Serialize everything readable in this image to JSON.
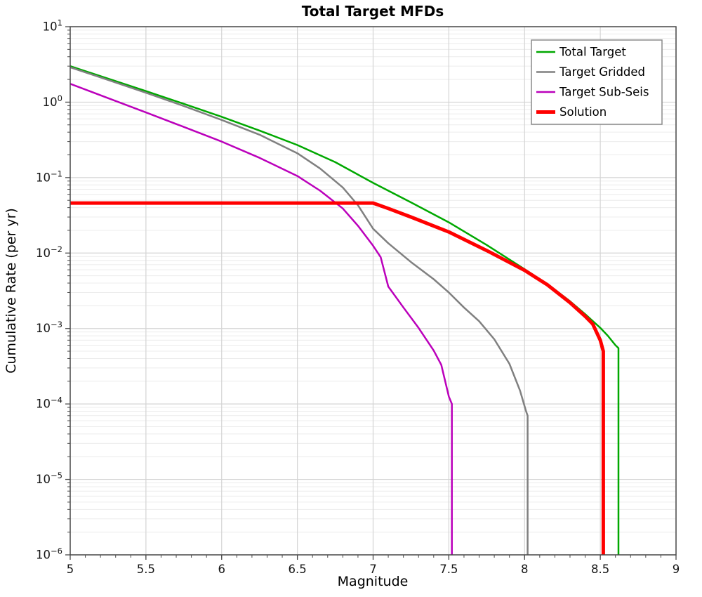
{
  "chart_data": {
    "type": "line",
    "title": "Total Target MFDs",
    "xlabel": "Magnitude",
    "ylabel": "Cumulative Rate (per yr)",
    "xlim": [
      5,
      9
    ],
    "x_minor_step": 0.1,
    "y_scale": "log",
    "ylim": [
      1e-06,
      10
    ],
    "ytick_exponents": [
      1,
      0,
      -1,
      -2,
      -3,
      -4,
      -5,
      -6
    ],
    "xticks": [
      {
        "v": 5,
        "label": "5"
      },
      {
        "v": 5.5,
        "label": "5.5"
      },
      {
        "v": 6,
        "label": "6"
      },
      {
        "v": 6.5,
        "label": "6.5"
      },
      {
        "v": 7,
        "label": "7"
      },
      {
        "v": 7.5,
        "label": "7.5"
      },
      {
        "v": 8,
        "label": "8"
      },
      {
        "v": 8.5,
        "label": "8.5"
      },
      {
        "v": 9,
        "label": "9"
      }
    ],
    "grid": {
      "on": true,
      "major_color": "#d4d4d4",
      "minor_color": "#ececec"
    },
    "axis_color": "#4a4a4a",
    "background": "#ffffff",
    "legend": {
      "position": "top-right",
      "border_color": "#8a8a8a",
      "fill": "#ffffff"
    },
    "series": [
      {
        "name": "Total Target",
        "color": "#00a800",
        "width": 2.5,
        "points": [
          [
            5,
            3.0
          ],
          [
            5.25,
            2.05
          ],
          [
            5.5,
            1.4
          ],
          [
            5.75,
            0.95
          ],
          [
            6,
            0.64
          ],
          [
            6.25,
            0.42
          ],
          [
            6.5,
            0.27
          ],
          [
            6.75,
            0.16
          ],
          [
            7,
            0.085
          ],
          [
            7.25,
            0.047
          ],
          [
            7.5,
            0.0255
          ],
          [
            7.75,
            0.0128
          ],
          [
            8,
            0.0061
          ],
          [
            8.15,
            0.0039
          ],
          [
            8.3,
            0.0023
          ],
          [
            8.4,
            0.00155
          ],
          [
            8.5,
            0.00102
          ],
          [
            8.55,
            0.0008
          ],
          [
            8.6,
            0.0006
          ],
          [
            8.62,
            0.00055
          ],
          [
            8.62,
            1e-06
          ]
        ]
      },
      {
        "name": "Target Gridded",
        "color": "#808080",
        "width": 2.5,
        "points": [
          [
            5,
            2.9
          ],
          [
            5.25,
            1.97
          ],
          [
            5.5,
            1.33
          ],
          [
            5.75,
            0.89
          ],
          [
            6,
            0.58
          ],
          [
            6.25,
            0.37
          ],
          [
            6.5,
            0.21
          ],
          [
            6.65,
            0.132
          ],
          [
            6.8,
            0.074
          ],
          [
            6.9,
            0.043
          ],
          [
            7,
            0.021
          ],
          [
            7.1,
            0.0135
          ],
          [
            7.25,
            0.0076
          ],
          [
            7.4,
            0.0045
          ],
          [
            7.5,
            0.003
          ],
          [
            7.6,
            0.0019
          ],
          [
            7.7,
            0.00125
          ],
          [
            7.8,
            0.00072
          ],
          [
            7.9,
            0.00034
          ],
          [
            7.97,
            0.00015
          ],
          [
            8.01,
            8e-05
          ],
          [
            8.02,
            7e-05
          ],
          [
            8.02,
            1e-06
          ]
        ]
      },
      {
        "name": "Target Sub-Seis",
        "color": "#bb00bb",
        "width": 2.5,
        "points": [
          [
            5,
            1.75
          ],
          [
            5.25,
            1.13
          ],
          [
            5.5,
            0.73
          ],
          [
            5.75,
            0.47
          ],
          [
            6,
            0.3
          ],
          [
            6.25,
            0.183
          ],
          [
            6.5,
            0.105
          ],
          [
            6.65,
            0.067
          ],
          [
            6.8,
            0.039
          ],
          [
            6.9,
            0.023
          ],
          [
            7,
            0.0125
          ],
          [
            7.05,
            0.0088
          ],
          [
            7.1,
            0.0036
          ],
          [
            7.2,
            0.0019
          ],
          [
            7.3,
            0.00102
          ],
          [
            7.4,
            0.00051
          ],
          [
            7.45,
            0.00033
          ],
          [
            7.5,
            0.000125
          ],
          [
            7.52,
            0.0001
          ],
          [
            7.52,
            1e-06
          ]
        ]
      },
      {
        "name": "Solution",
        "color": "#ff0000",
        "width": 5,
        "points": [
          [
            5,
            0.046
          ],
          [
            7,
            0.046
          ],
          [
            7.1,
            0.039
          ],
          [
            7.25,
            0.03
          ],
          [
            7.5,
            0.019
          ],
          [
            7.75,
            0.0108
          ],
          [
            8,
            0.0059
          ],
          [
            8.15,
            0.0038
          ],
          [
            8.3,
            0.0022
          ],
          [
            8.4,
            0.00145
          ],
          [
            8.45,
            0.00115
          ],
          [
            8.5,
            0.0007
          ],
          [
            8.52,
            0.0005
          ],
          [
            8.52,
            1e-06
          ]
        ]
      }
    ]
  }
}
